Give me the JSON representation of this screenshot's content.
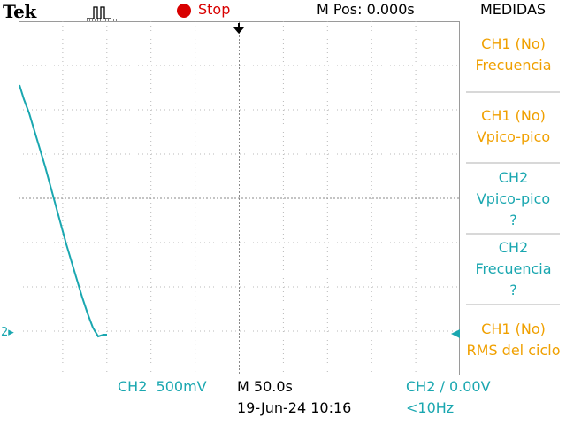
{
  "header": {
    "brand": "Tek",
    "acq_state": "Stop",
    "horizontal_position": "M Pos: 0.000s",
    "menu_title": "MEDIDAS"
  },
  "measure_menu": {
    "items": [
      {
        "line1": "CH1 (No)",
        "line2": "Frecuencia",
        "line3": ""
      },
      {
        "line1": "CH1 (No)",
        "line2": "Vpico-pico",
        "line3": ""
      },
      {
        "line1": "CH2",
        "line2": "Vpico-pico",
        "line3": "?"
      },
      {
        "line1": "CH2",
        "line2": "Frecuencia",
        "line3": "?"
      },
      {
        "line1": "CH1 (No)",
        "line2": "RMS del ciclo",
        "line3": ""
      }
    ]
  },
  "waveform": {
    "channel_marker": "2",
    "color": "#1aa7b0"
  },
  "status_bar": {
    "ch2_scale": "CH2  500mV",
    "timebase": "M 50.0s",
    "trigger": "CH2 ∕ 0.00V",
    "datetime": "19-Jun-24 10:16",
    "trigger_freq": "<10Hz"
  },
  "colors": {
    "ch1": "#f0a000",
    "ch2": "#1aa7b0",
    "stop": "#d80000"
  }
}
